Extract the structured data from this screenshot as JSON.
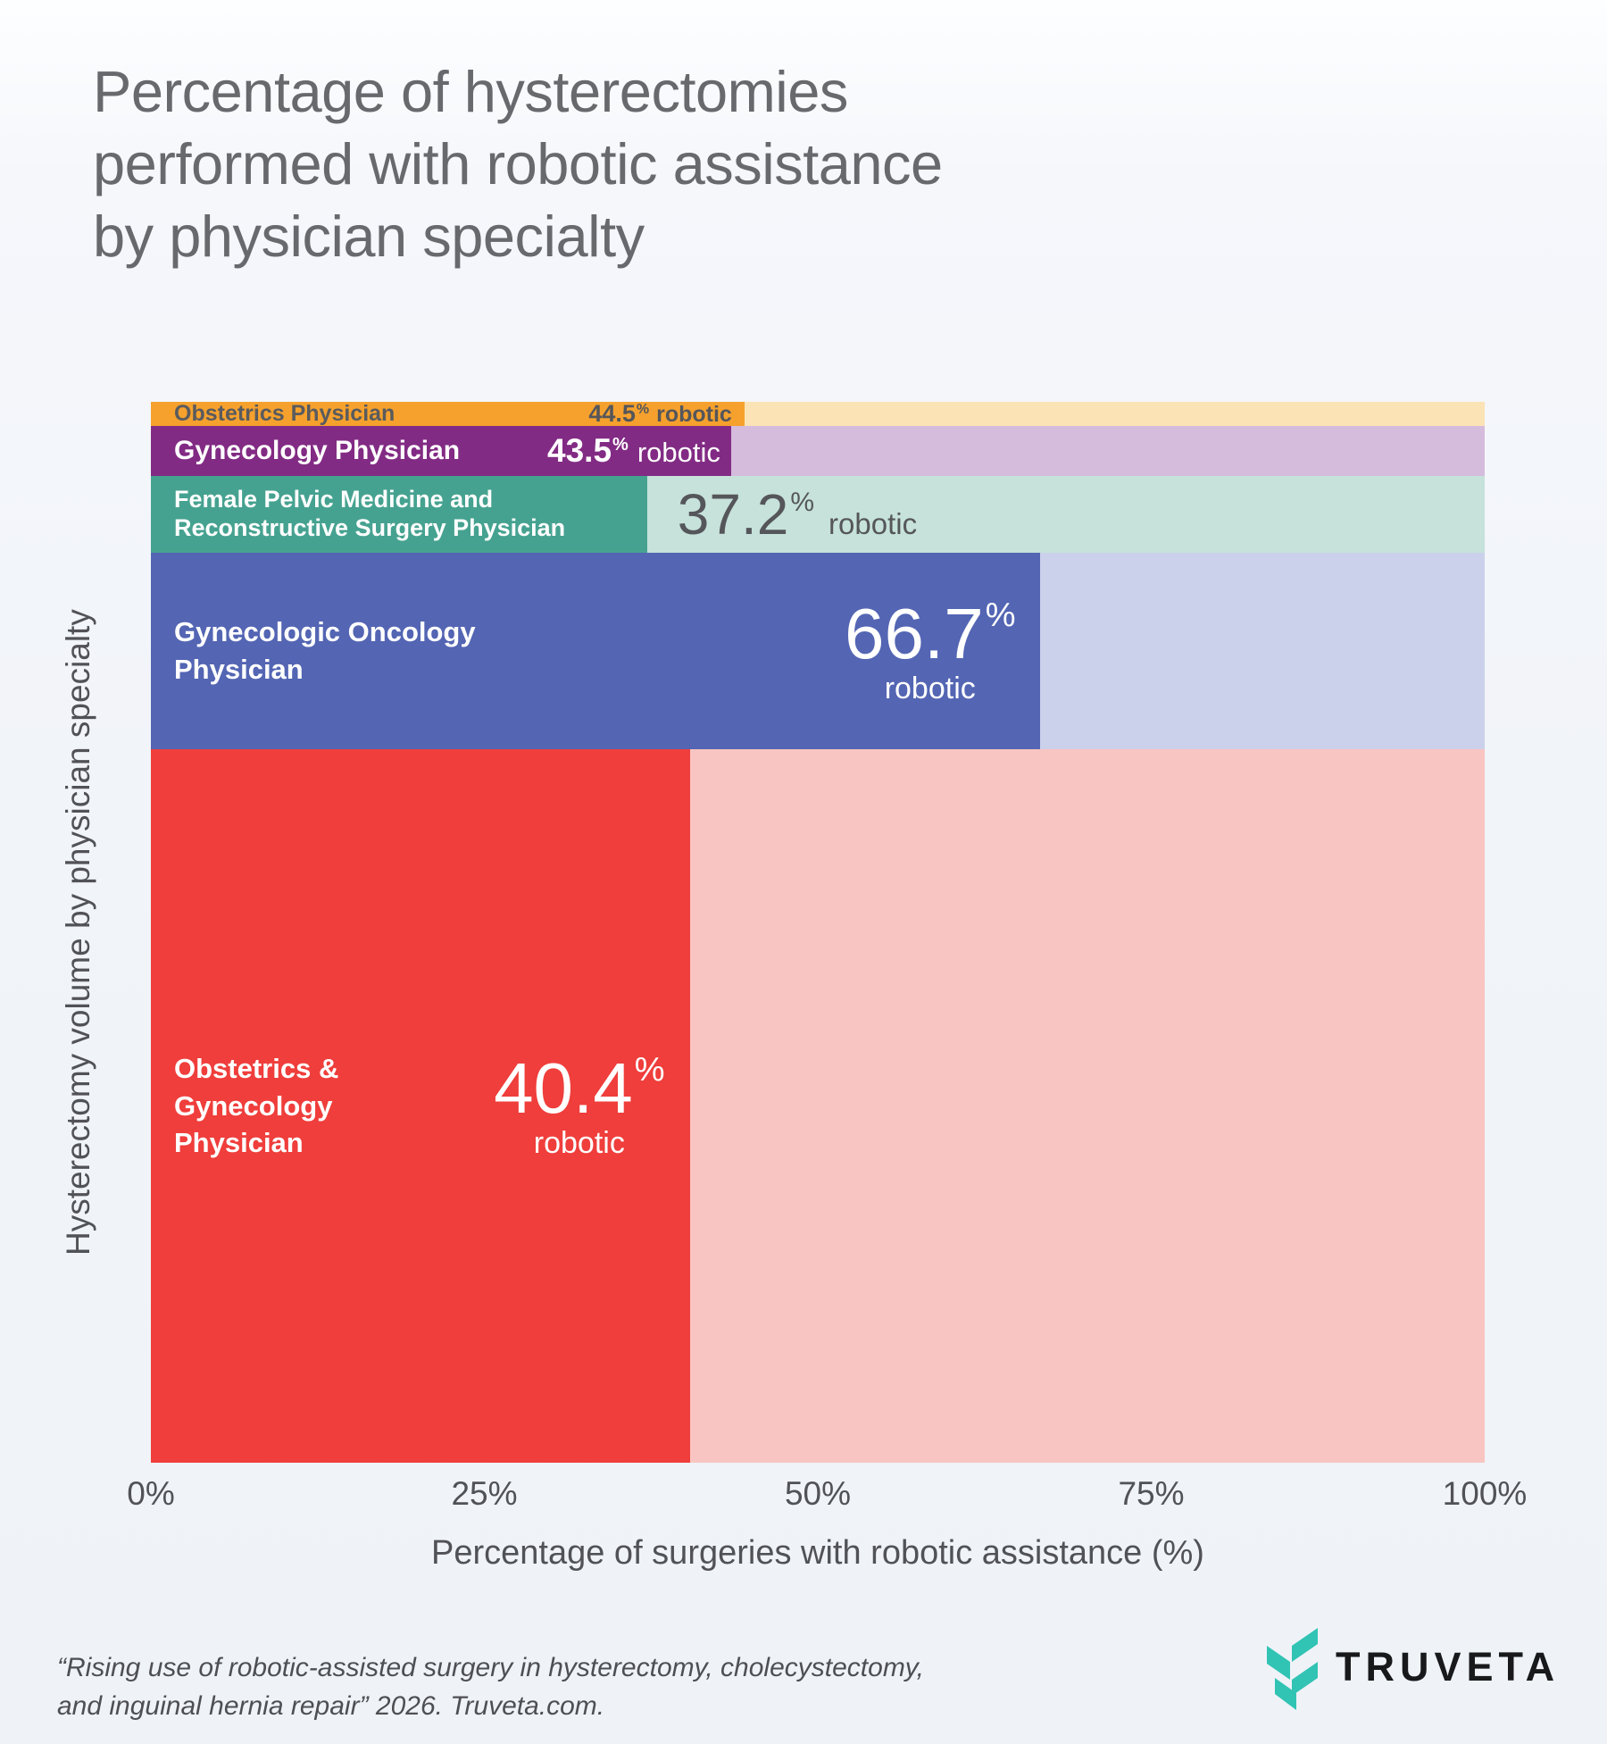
{
  "page": {
    "title_lines": [
      "Percentage of hysterectomies",
      "performed with robotic assistance",
      "by physician specialty"
    ],
    "footnote_lines": [
      "“Rising use of robotic-assisted surgery in hysterectomy, cholecystectomy,",
      "and inguinal hernia repair” 2026. Truveta.com."
    ],
    "logo_text": "TRUVETA",
    "logo_color": "#31C3B4",
    "background_color": "#F1F4F9",
    "title_color": "#67696D",
    "axis_text_color": "#515257"
  },
  "chart_data": {
    "type": "bar",
    "variant": "marimekko-horizontal",
    "title": "Percentage of hysterectomies performed with robotic assistance by physician specialty",
    "xlabel": "Percentage of surgeries with robotic assistance (%)",
    "ylabel": "Hysterectomy volume by physician specialty",
    "xlim": [
      0,
      100
    ],
    "x_ticks": [
      "0%",
      "25%",
      "50%",
      "75%",
      "100%"
    ],
    "grid": false,
    "legend": false,
    "bars": [
      {
        "label": "Obstetrics Physician",
        "label_lines": [
          "Obstetrics Physician"
        ],
        "robotic_pct": 44.5,
        "value_display": "44.5",
        "unit": "%",
        "suffix": "robotic",
        "volume_share_pct": 2.27,
        "color": "#F6A12D",
        "track_color": "#FCE3B6",
        "label_theme": "dark",
        "value_theme": "dark",
        "value_placement": "inside",
        "scale": "sm"
      },
      {
        "label": "Gynecology Physician",
        "label_lines": [
          "Gynecology Physician"
        ],
        "robotic_pct": 43.5,
        "value_display": "43.5",
        "unit": "%",
        "suffix": "robotic",
        "volume_share_pct": 4.71,
        "color": "#822B84",
        "track_color": "#D5BBDC",
        "label_theme": "light",
        "value_theme": "light",
        "value_placement": "inside",
        "scale": "md"
      },
      {
        "label": "Female Pelvic Medicine and Reconstructive Surgery Physician",
        "label_lines": [
          "Female Pelvic Medicine and",
          "Reconstructive Surgery Physician"
        ],
        "robotic_pct": 37.2,
        "value_display": "37.2",
        "unit": "%",
        "suffix": "robotic",
        "volume_share_pct": 7.24,
        "color": "#46A290",
        "track_color": "#C6E2DA",
        "label_theme": "light",
        "value_theme": "dark",
        "value_placement": "outside",
        "scale": "lg"
      },
      {
        "label": "Gynecologic Oncology Physician",
        "label_lines": [
          "Gynecologic Oncology",
          "Physician"
        ],
        "robotic_pct": 66.7,
        "value_display": "66.7",
        "unit": "%",
        "suffix": "robotic",
        "volume_share_pct": 18.52,
        "color": "#5365B3",
        "track_color": "#CBD0EB",
        "label_theme": "light",
        "value_theme": "light",
        "value_placement": "inside",
        "scale": "xl"
      },
      {
        "label": "Obstetrics & Gynecology Physician",
        "label_lines": [
          "Obstetrics &",
          "Gynecology",
          "Physician"
        ],
        "robotic_pct": 40.4,
        "value_display": "40.4",
        "unit": "%",
        "suffix": "robotic",
        "volume_share_pct": 67.26,
        "color": "#EF3E3B",
        "track_color": "#F9C5C2",
        "label_theme": "light",
        "value_theme": "light",
        "value_placement": "inside",
        "scale": "xl"
      }
    ]
  }
}
